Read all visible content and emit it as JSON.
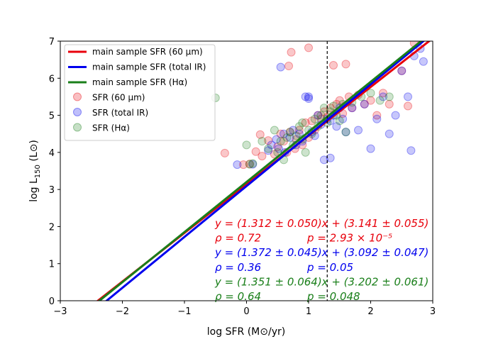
{
  "chart_data": {
    "type": "scatter",
    "xlabel": "log SFR (M⊙/yr)",
    "ylabel_main": "log L",
    "ylabel_sub": "150",
    "ylabel_tail": " (L⊙)",
    "xlim": [
      -3,
      3
    ],
    "ylim": [
      0,
      7
    ],
    "xticks": [
      -3,
      -2,
      -1,
      0,
      1,
      2,
      3
    ],
    "yticks": [
      0,
      1,
      2,
      3,
      4,
      5,
      6,
      7
    ],
    "xtick_labels": [
      "−3",
      "−2",
      "−1",
      "0",
      "1",
      "2",
      "3"
    ],
    "ytick_labels": [
      "0",
      "1",
      "2",
      "3",
      "4",
      "5",
      "6",
      "7"
    ],
    "vline_x": 1.3,
    "colors": {
      "red": "#e8000b",
      "blue": "#0000ee",
      "green": "#1a7f1a"
    },
    "fit_lines": [
      {
        "name": "main sample SFR (60 μm)",
        "color": "#e8000b",
        "slope": 1.312,
        "intercept": 3.141
      },
      {
        "name": "main sample SFR (total IR)",
        "color": "#0000ee",
        "slope": 1.372,
        "intercept": 3.092
      },
      {
        "name": "main sample SFR (Hα)",
        "color": "#1a7f1a",
        "slope": 1.351,
        "intercept": 3.202
      }
    ],
    "series": [
      {
        "name": "SFR (60 μm)",
        "color": "#e8000b",
        "points": [
          [
            -0.35,
            3.98
          ],
          [
            -0.05,
            3.67
          ],
          [
            0.05,
            3.69
          ],
          [
            0.15,
            4.02
          ],
          [
            0.22,
            4.48
          ],
          [
            0.25,
            3.9
          ],
          [
            0.35,
            4.32
          ],
          [
            0.45,
            3.95
          ],
          [
            0.5,
            4.15
          ],
          [
            0.55,
            4.5
          ],
          [
            0.6,
            4.3
          ],
          [
            0.65,
            4.0
          ],
          [
            0.7,
            4.55
          ],
          [
            0.72,
            6.7
          ],
          [
            0.78,
            4.1
          ],
          [
            0.8,
            4.35
          ],
          [
            0.85,
            4.6
          ],
          [
            0.9,
            4.2
          ],
          [
            0.95,
            4.8
          ],
          [
            1.0,
            4.4
          ],
          [
            1.05,
            4.85
          ],
          [
            1.1,
            4.6
          ],
          [
            1.15,
            5.0
          ],
          [
            1.2,
            4.9
          ],
          [
            1.25,
            5.1
          ],
          [
            1.3,
            4.95
          ],
          [
            1.35,
            5.2
          ],
          [
            1.4,
            6.35
          ],
          [
            1.45,
            5.3
          ],
          [
            1.5,
            5.4
          ],
          [
            1.55,
            5.05
          ],
          [
            1.6,
            6.38
          ],
          [
            1.65,
            5.5
          ],
          [
            1.7,
            5.2
          ],
          [
            1.8,
            5.55
          ],
          [
            1.9,
            5.3
          ],
          [
            2.0,
            5.4
          ],
          [
            2.1,
            5.0
          ],
          [
            2.2,
            5.6
          ],
          [
            2.3,
            5.3
          ],
          [
            2.5,
            6.2
          ],
          [
            2.6,
            5.25
          ],
          [
            2.7,
            6.95
          ],
          [
            1.0,
            6.82
          ],
          [
            0.68,
            6.33
          ]
        ]
      },
      {
        "name": "SFR (total IR)",
        "color": "#0000ee",
        "points": [
          [
            -0.15,
            3.67
          ],
          [
            0.1,
            3.68
          ],
          [
            0.35,
            4.05
          ],
          [
            0.4,
            4.2
          ],
          [
            0.48,
            4.35
          ],
          [
            0.52,
            4.1
          ],
          [
            0.55,
            6.3
          ],
          [
            0.6,
            4.5
          ],
          [
            0.62,
            4.0
          ],
          [
            0.7,
            4.4
          ],
          [
            0.75,
            4.6
          ],
          [
            0.8,
            4.2
          ],
          [
            0.85,
            4.5
          ],
          [
            0.9,
            4.3
          ],
          [
            0.95,
            5.5
          ],
          [
            1.0,
            5.5
          ],
          [
            1.05,
            4.55
          ],
          [
            1.1,
            4.45
          ],
          [
            1.15,
            5.0
          ],
          [
            1.2,
            4.75
          ],
          [
            1.25,
            3.8
          ],
          [
            1.3,
            4.9
          ],
          [
            1.35,
            4.85
          ],
          [
            1.4,
            5.0
          ],
          [
            1.45,
            4.7
          ],
          [
            1.5,
            5.2
          ],
          [
            1.55,
            4.9
          ],
          [
            1.6,
            4.55
          ],
          [
            1.7,
            5.2
          ],
          [
            1.8,
            4.6
          ],
          [
            1.9,
            5.3
          ],
          [
            2.0,
            4.1
          ],
          [
            2.1,
            4.9
          ],
          [
            2.2,
            5.5
          ],
          [
            2.3,
            4.5
          ],
          [
            2.4,
            5.0
          ],
          [
            2.5,
            6.2
          ],
          [
            2.6,
            5.5
          ],
          [
            2.65,
            4.05
          ],
          [
            2.7,
            6.6
          ],
          [
            2.8,
            6.8
          ],
          [
            2.85,
            6.45
          ],
          [
            1.35,
            3.85
          ],
          [
            1.0,
            5.45
          ]
        ]
      },
      {
        "name": "SFR (Hα)",
        "color": "#1a7f1a",
        "points": [
          [
            -0.5,
            5.47
          ],
          [
            0.0,
            4.2
          ],
          [
            0.05,
            3.68
          ],
          [
            0.1,
            3.7
          ],
          [
            0.25,
            4.3
          ],
          [
            0.35,
            4.1
          ],
          [
            0.45,
            4.6
          ],
          [
            0.5,
            4.0
          ],
          [
            0.55,
            4.3
          ],
          [
            0.6,
            3.8
          ],
          [
            0.65,
            4.4
          ],
          [
            0.7,
            4.55
          ],
          [
            0.75,
            4.2
          ],
          [
            0.8,
            4.45
          ],
          [
            0.85,
            4.7
          ],
          [
            0.9,
            4.35
          ],
          [
            0.95,
            4.0
          ],
          [
            1.0,
            4.6
          ],
          [
            1.05,
            4.5
          ],
          [
            1.1,
            4.9
          ],
          [
            1.15,
            4.7
          ],
          [
            1.2,
            5.0
          ],
          [
            1.25,
            5.2
          ],
          [
            1.3,
            4.8
          ],
          [
            1.35,
            5.1
          ],
          [
            1.45,
            5.0
          ],
          [
            1.5,
            4.85
          ],
          [
            1.55,
            5.3
          ],
          [
            1.6,
            4.55
          ],
          [
            1.7,
            5.35
          ],
          [
            1.85,
            5.5
          ],
          [
            2.0,
            5.6
          ],
          [
            2.15,
            5.4
          ],
          [
            2.3,
            5.5
          ],
          [
            1.4,
            5.25
          ],
          [
            0.9,
            4.8
          ]
        ]
      }
    ],
    "annotations": [
      {
        "left": "y = (1.312 ± 0.050)x + (3.141 ± 0.055)",
        "color": "#e8000b"
      },
      {
        "left": "ρ = 0.72",
        "right": "p = 2.93 × 10⁻⁵",
        "color": "#e8000b"
      },
      {
        "left": "y = (1.372 ± 0.045)x + (3.092 ± 0.047)",
        "color": "#0000ee"
      },
      {
        "left": "ρ = 0.36",
        "right": "p = 0.05",
        "color": "#0000ee"
      },
      {
        "left": "y = (1.351 ± 0.064)x + (3.202 ± 0.061)",
        "color": "#1a7f1a"
      },
      {
        "left": "ρ = 0.64",
        "right": "p = 0.048",
        "color": "#1a7f1a"
      }
    ],
    "legend": {
      "position": "top-left",
      "lines": [
        "main sample SFR (60 μm)",
        "main sample SFR (total IR)",
        "main sample SFR (Hα)"
      ],
      "markers": [
        "SFR (60 μm)",
        "SFR (total IR)",
        "SFR (Hα)"
      ]
    }
  }
}
